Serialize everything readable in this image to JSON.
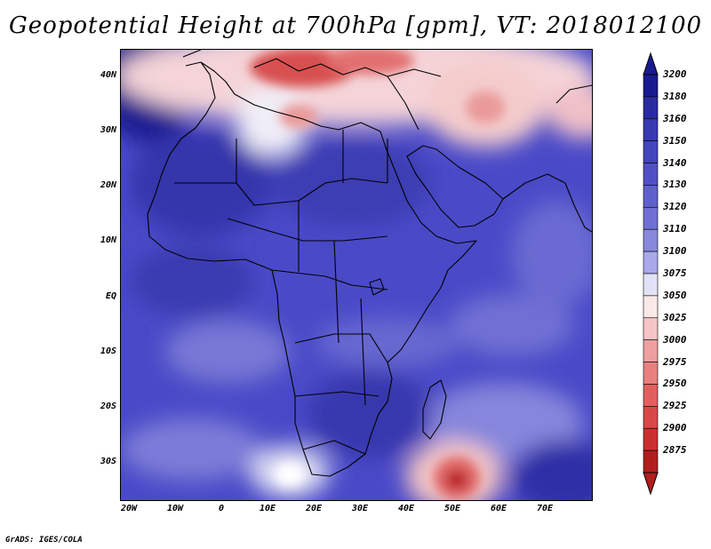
{
  "title": "Geopotential Height at 700hPa [gpm], VT: 2018012100",
  "map": {
    "lon_range": [
      -22,
      80
    ],
    "lat_range": [
      -37,
      45
    ],
    "lat_labels": [
      "40N",
      "30N",
      "20N",
      "10N",
      "EQ",
      "10S",
      "20S",
      "30S"
    ],
    "lon_labels": [
      "20W",
      "10W",
      "0",
      "10E",
      "20E",
      "30E",
      "40E",
      "50E",
      "60E",
      "70E"
    ],
    "background_color": "#4a4ac8"
  },
  "colorbar": {
    "levels": [
      "3200",
      "3180",
      "3160",
      "3150",
      "3140",
      "3130",
      "3120",
      "3110",
      "3100",
      "3075",
      "3050",
      "3025",
      "3000",
      "2975",
      "2950",
      "2925",
      "2900",
      "2875"
    ],
    "colors": [
      "#1a1a8f",
      "#2a2aa0",
      "#3838b0",
      "#4444bc",
      "#5050c4",
      "#6060cc",
      "#7070d4",
      "#8888dc",
      "#a8a8ea",
      "#e2e2f7",
      "#fbe8e8",
      "#f5c4c4",
      "#ee9f9f",
      "#e88080",
      "#e06060",
      "#d84848",
      "#c83030",
      "#b01e1e"
    ]
  },
  "credit": "GrADS: IGES/COLA"
}
